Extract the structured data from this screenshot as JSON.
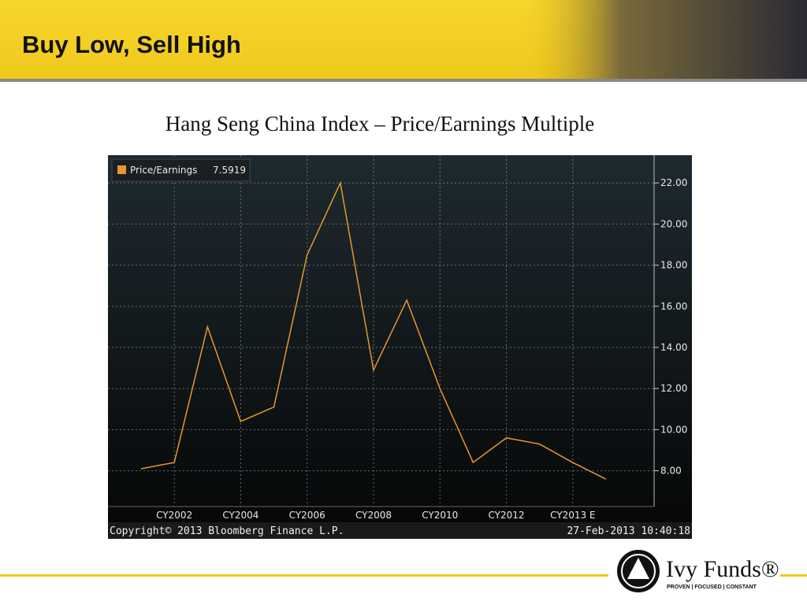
{
  "header": {
    "title": "Buy Low, Sell High"
  },
  "chart_data": {
    "type": "line",
    "title": "Hang Seng China Index – Price/Earnings Multiple",
    "categories": [
      null,
      "CY2002",
      null,
      "CY2004",
      null,
      "CY2006",
      null,
      "CY2008",
      null,
      "CY2010",
      null,
      "CY2012",
      null,
      "CY2013 E",
      null
    ],
    "series": [
      {
        "name": "Price/Earnings",
        "color": "#e8962e",
        "values": [
          8.1,
          8.4,
          15.0,
          10.4,
          11.1,
          18.5,
          22.0,
          12.9,
          16.3,
          12.0,
          8.4,
          9.6,
          9.3,
          8.4,
          7.5919
        ]
      }
    ],
    "ylim": [
      6.26,
      23.35
    ],
    "yticks": [
      {
        "value": 8,
        "label": "8.00"
      },
      {
        "value": 10,
        "label": "10.00"
      },
      {
        "value": 12,
        "label": "12.00"
      },
      {
        "value": 14,
        "label": "14.00"
      },
      {
        "value": 16,
        "label": "16.00"
      },
      {
        "value": 18,
        "label": "18.00"
      },
      {
        "value": 20,
        "label": "20.00"
      },
      {
        "value": 22,
        "label": "22.00"
      }
    ],
    "grid": true,
    "legend": "top-left",
    "copyright": "Copyright© 2013 Bloomberg Finance L.P.",
    "timestamp": "27-Feb-2013 10:40:18"
  },
  "footer": {
    "logo": "Ivy Funds®",
    "tagline": "PROVEN | FOCUSED | CONSTANT"
  }
}
